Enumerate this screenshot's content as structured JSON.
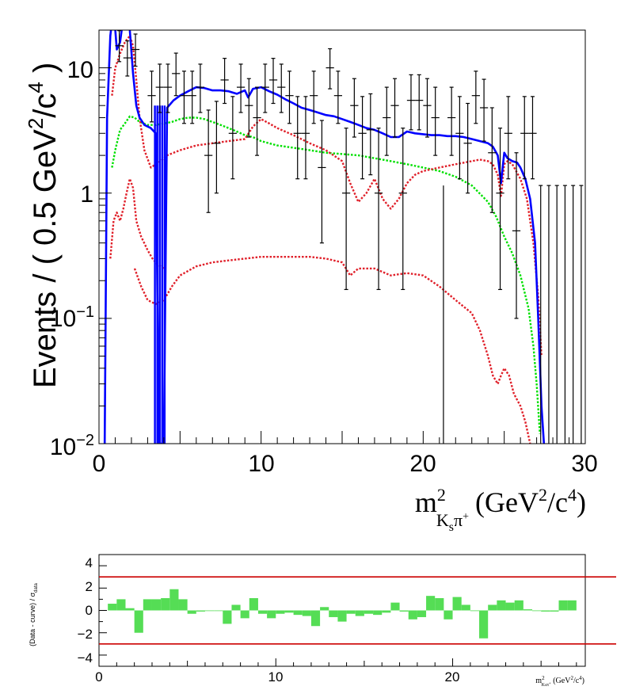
{
  "chart_data": [
    {
      "id": "main",
      "type": "line",
      "y_scale": "log",
      "xlim": [
        0,
        30
      ],
      "ylim": [
        0.01,
        20
      ],
      "ylabel": "Events / ( 0.5 GeV²/c⁴ )",
      "xlabel": "m²Kₛπ⁺ (GeV²/c⁴)",
      "xlabel_parts": {
        "main": "m",
        "sup": "2",
        "sub": "K",
        "sub_sub": "s",
        "pi": "π",
        "pi_sup": "+",
        "unit_open": "(GeV",
        "unit_sup1": "2",
        "unit_mid": "/c",
        "unit_sup2": "4",
        "unit_close": ")"
      },
      "ylabel_parts": {
        "a": "Events / ( 0.5 GeV",
        "sup1": "2",
        "b": "/c",
        "sup2": "4",
        "c": " )"
      },
      "x_ticks": [
        0,
        10,
        20,
        30
      ],
      "y_ticks": [
        {
          "value": 0.01,
          "label": "10",
          "sup": "−2"
        },
        {
          "value": 0.1,
          "label": "10",
          "sup": "−1"
        },
        {
          "value": 1,
          "label": "1",
          "sup": ""
        },
        {
          "value": 10,
          "label": "10",
          "sup": ""
        }
      ],
      "data_points": {
        "x": [
          1.25,
          1.75,
          2.25,
          3.25,
          3.75,
          4.25,
          4.75,
          5.25,
          5.75,
          6.25,
          6.75,
          7.25,
          7.75,
          8.25,
          8.75,
          9.25,
          9.75,
          10.25,
          10.75,
          11.25,
          11.75,
          12.25,
          12.75,
          13.25,
          13.75,
          14.25,
          14.75,
          15.25,
          15.75,
          16.25,
          16.75,
          17.25,
          17.75,
          18.25,
          18.75,
          19.25,
          19.75,
          20.25,
          20.75,
          21.25,
          21.75,
          22.25,
          22.75,
          23.25,
          23.75,
          24.25,
          24.75,
          25.25,
          25.75,
          26.25,
          26.75
        ],
        "y": [
          15,
          12,
          14,
          6,
          7,
          7,
          9,
          6,
          6,
          7,
          2,
          2.5,
          8,
          3,
          7,
          5,
          4,
          7,
          8,
          7,
          6,
          3,
          3,
          6,
          1.6,
          10,
          6,
          1,
          5,
          3,
          3.2,
          1,
          4,
          5,
          1,
          5.5,
          5.5,
          5,
          4,
          0.001,
          4,
          3,
          2.5,
          6,
          4.8,
          2.1,
          1,
          3,
          0.5,
          3,
          3
        ],
        "yerr_lo": [
          3.8,
          3.4,
          3.7,
          2.3,
          2.6,
          2.6,
          3,
          2.4,
          2.4,
          2.6,
          1.3,
          1.5,
          2.8,
          1.7,
          2.6,
          2.2,
          2,
          2.6,
          2.8,
          2.6,
          2.4,
          1.7,
          1.7,
          2.4,
          1.2,
          3.2,
          2.4,
          0.83,
          2.2,
          1.7,
          1.8,
          0.83,
          2,
          2.2,
          0.83,
          2.3,
          2.3,
          2.2,
          2,
          0,
          2,
          1.7,
          1.5,
          2.4,
          2.2,
          1.4,
          0.83,
          1.7,
          0.4,
          1.7,
          1.7
        ],
        "yerr_hi": [
          4.8,
          4.4,
          4.6,
          3.4,
          3.7,
          3.7,
          4.1,
          3.4,
          3.4,
          3.7,
          2.6,
          2.9,
          3.9,
          2.9,
          3.7,
          3.2,
          3,
          3.7,
          3.9,
          3.7,
          3.4,
          2.9,
          2.9,
          3.4,
          2.2,
          4.2,
          3.4,
          2.3,
          3.2,
          2.9,
          3,
          2.3,
          3,
          3.2,
          2.3,
          3.3,
          3.3,
          3.2,
          3,
          1.15,
          3,
          2.9,
          2.7,
          3.4,
          3.3,
          2.7,
          2.3,
          2.9,
          1.6,
          2.9,
          2.9
        ],
        "empty_bins_x": [
          27.25,
          27.75,
          28.25,
          28.75,
          29.25,
          29.75
        ],
        "empty_bins_upper": 1.15
      },
      "series": [
        {
          "id": "total",
          "color": "#0000ff",
          "style": "solid",
          "x": [
            0.35,
            0.5,
            0.7,
            0.9,
            1.1,
            1.3,
            1.5,
            1.7,
            1.9,
            2.1,
            2.3,
            2.5,
            2.8,
            3.2,
            3.5,
            3.7,
            4.0,
            4.2,
            4.6,
            5.0,
            5.5,
            6.0,
            6.5,
            7.0,
            7.5,
            8.0,
            8.5,
            9.0,
            9.2,
            9.5,
            10.0,
            10.5,
            11.0,
            11.5,
            12.0,
            12.5,
            13.0,
            13.5,
            14.0,
            14.5,
            15.0,
            15.5,
            16.0,
            16.5,
            17.0,
            17.5,
            18.0,
            18.5,
            19.0,
            19.5,
            20.0,
            20.5,
            21.0,
            21.5,
            22.0,
            22.5,
            23.0,
            23.5,
            24.0,
            24.3,
            24.6,
            24.8,
            25.0,
            25.2,
            25.5,
            25.8,
            26.0,
            26.3,
            26.6,
            26.9,
            27.1,
            27.3,
            27.45
          ],
          "y": [
            0.01,
            4,
            18,
            30,
            14,
            16,
            25,
            40,
            20,
            9,
            5,
            4,
            3.5,
            3.3,
            3.0,
            0.01,
            0.01,
            4.8,
            5.5,
            6.0,
            6.5,
            7.0,
            6.9,
            6.6,
            6.6,
            6.5,
            6.2,
            6.6,
            5.8,
            6.8,
            7.0,
            6.5,
            6.1,
            5.6,
            5.2,
            4.8,
            4.6,
            4.4,
            4.2,
            4.1,
            3.9,
            3.7,
            3.5,
            3.3,
            3.2,
            3.0,
            2.8,
            2.8,
            3.1,
            3.0,
            2.95,
            2.9,
            2.9,
            2.85,
            2.85,
            2.8,
            2.7,
            2.6,
            2.5,
            2.35,
            2.0,
            1.2,
            2.1,
            1.9,
            1.8,
            1.75,
            1.6,
            1.3,
            0.9,
            0.4,
            0.1,
            0.02,
            0.01
          ]
        },
        {
          "id": "green",
          "color": "#00e000",
          "style": "dotted",
          "x": [
            0.8,
            1.0,
            1.3,
            1.6,
            1.9,
            2.2,
            2.5,
            3.0,
            3.5,
            4.0,
            4.5,
            5.0,
            5.5,
            6.0,
            6.5,
            7.0,
            7.5,
            8.0,
            8.5,
            9.0,
            9.5,
            10.0,
            11.0,
            12.0,
            13.0,
            14.0,
            15.0,
            16.0,
            17.0,
            18.0,
            19.0,
            20.0,
            21.0,
            22.0,
            23.0,
            24.0,
            24.5,
            25.0,
            25.5,
            26.0,
            26.5,
            26.8,
            27.0,
            27.2
          ],
          "y": [
            1.6,
            2.2,
            3.2,
            3.6,
            4.1,
            4.0,
            3.7,
            3.5,
            3.5,
            3.6,
            3.7,
            3.9,
            4.0,
            4.0,
            3.9,
            3.7,
            3.5,
            3.3,
            3.1,
            2.9,
            2.8,
            2.6,
            2.4,
            2.3,
            2.2,
            2.1,
            2.05,
            2.0,
            1.9,
            1.8,
            1.7,
            1.6,
            1.5,
            1.35,
            1.15,
            0.85,
            0.65,
            0.45,
            0.33,
            0.22,
            0.12,
            0.06,
            0.03,
            0.012
          ]
        },
        {
          "id": "red-upper",
          "color": "#e0202a",
          "style": "dotted",
          "x": [
            0.8,
            1.0,
            1.3,
            1.6,
            1.9,
            2.1,
            2.3,
            2.5,
            2.8,
            3.2,
            3.5,
            3.8,
            4.2,
            5.0,
            6.0,
            7.0,
            8.0,
            9.0,
            9.5,
            10.0,
            10.5,
            11.0,
            12.0,
            13.0,
            14.0,
            15.0,
            15.5,
            16.0,
            16.5,
            17.0,
            17.5,
            18.0,
            18.5,
            19.0,
            19.5,
            20.0,
            21.0,
            22.0,
            23.0,
            23.5,
            24.0,
            24.3,
            24.6,
            24.8,
            25.0,
            25.2,
            25.5,
            26.0,
            26.4,
            26.8,
            27.1,
            27.3
          ],
          "y": [
            6,
            10,
            13,
            16,
            18,
            15,
            8,
            4,
            2.2,
            1.6,
            1.7,
            1.8,
            2.0,
            2.2,
            2.4,
            2.5,
            2.6,
            2.7,
            3.4,
            3.9,
            3.6,
            3.3,
            2.9,
            2.5,
            2.2,
            1.8,
            1.2,
            0.85,
            1.0,
            1.3,
            0.9,
            0.75,
            0.9,
            1.2,
            1.4,
            1.5,
            1.6,
            1.7,
            1.8,
            1.85,
            1.8,
            1.7,
            1.4,
            0.95,
            1.7,
            1.8,
            1.7,
            1.3,
            0.9,
            0.4,
            0.15,
            0.05
          ]
        },
        {
          "id": "red-mid",
          "color": "#e0202a",
          "style": "dotted",
          "x": [
            0.7,
            0.9,
            1.1,
            1.3,
            1.5,
            1.7,
            1.9,
            2.1,
            2.3,
            2.6,
            3.0,
            3.3,
            3.6,
            4.0
          ],
          "y": [
            0.3,
            0.6,
            0.7,
            0.6,
            0.75,
            1.0,
            1.3,
            1.1,
            0.6,
            0.45,
            0.35,
            0.3,
            0.27,
            0.25
          ]
        },
        {
          "id": "red-lower",
          "color": "#e0202a",
          "style": "dotted",
          "x": [
            2.2,
            2.6,
            3.0,
            3.5,
            4.0,
            4.5,
            5.0,
            6.0,
            7.0,
            8.0,
            9.0,
            10.0,
            11.0,
            12.0,
            13.0,
            14.0,
            15.0,
            15.5,
            16.0,
            17.0,
            18.0,
            19.0,
            20.0,
            21.0,
            22.0,
            23.0,
            23.5,
            24.0,
            24.3,
            24.6,
            24.8,
            25.0,
            25.3,
            25.6,
            26.0,
            26.3,
            26.6
          ],
          "y": [
            0.25,
            0.18,
            0.14,
            0.13,
            0.14,
            0.18,
            0.22,
            0.26,
            0.28,
            0.29,
            0.3,
            0.31,
            0.31,
            0.31,
            0.31,
            0.3,
            0.28,
            0.22,
            0.25,
            0.25,
            0.22,
            0.23,
            0.22,
            0.18,
            0.14,
            0.11,
            0.08,
            0.05,
            0.035,
            0.03,
            0.035,
            0.04,
            0.035,
            0.025,
            0.02,
            0.015,
            0.01
          ]
        }
      ]
    },
    {
      "id": "pull",
      "type": "bar",
      "ylabel": "(Data - curve) / σ_data",
      "ylabel_parts": {
        "a": "(Data - curve) / σ",
        "sub": "data"
      },
      "xlabel": "m²Kₛπ⁺ (GeV²/c⁴)",
      "xlabel_parts": {
        "main": "m",
        "sup": "2",
        "sub": "K",
        "sub_sub": "s",
        "pi": "π",
        "pi_sup": "+",
        "unit_open": " (GeV",
        "unit_sup1": "2",
        "unit_mid": "/c",
        "unit_sup2": "4",
        "unit_close": ")"
      },
      "xlim": [
        0,
        27.5
      ],
      "ylim": [
        -5,
        5
      ],
      "x_ticks": [
        0,
        10,
        20
      ],
      "y_ticks": [
        {
          "value": 4,
          "label": "4"
        },
        {
          "value": 2,
          "label": "2"
        },
        {
          "value": 0,
          "label": "0"
        },
        {
          "value": -2,
          "label": "−2"
        },
        {
          "value": -4,
          "label": "−4"
        }
      ],
      "reference_lines": [
        3,
        -3
      ],
      "reference_color": "#cc0000",
      "bar_color": "#55dd55",
      "bin_width": 0.5,
      "bins_start": [
        0.5,
        1.0,
        1.5,
        2.0,
        2.5,
        3.0,
        3.5,
        4.0,
        4.5,
        5.0,
        5.5,
        6.0,
        6.5,
        7.0,
        7.5,
        8.0,
        8.5,
        9.0,
        9.5,
        10.0,
        10.5,
        11.0,
        11.5,
        12.0,
        12.5,
        13.0,
        13.5,
        14.0,
        14.5,
        15.0,
        15.5,
        16.0,
        16.5,
        17.0,
        17.5,
        18.0,
        18.5,
        19.0,
        19.5,
        20.0,
        20.5,
        21.0,
        21.5,
        22.0,
        22.5,
        23.0,
        23.5,
        24.0,
        24.5,
        25.0,
        25.5,
        26.0,
        26.5
      ],
      "values": [
        0.6,
        1.0,
        0.2,
        -2.0,
        1.0,
        1.0,
        1.1,
        1.9,
        1.0,
        -0.3,
        -0.1,
        0.0,
        0.0,
        -1.2,
        0.5,
        -0.7,
        1.1,
        -0.3,
        -0.7,
        -0.3,
        -0.2,
        -0.4,
        -0.5,
        -1.4,
        0.3,
        -0.6,
        -1.0,
        -0.3,
        -0.5,
        -0.3,
        -0.4,
        -0.2,
        0.7,
        -0.1,
        -0.8,
        -0.6,
        1.3,
        1.1,
        -0.8,
        1.2,
        0.5,
        0.0,
        -2.5,
        0.5,
        0.9,
        0.7,
        0.9,
        0.1,
        0.0,
        -0.1,
        -0.1,
        0.9,
        0.9
      ]
    }
  ]
}
